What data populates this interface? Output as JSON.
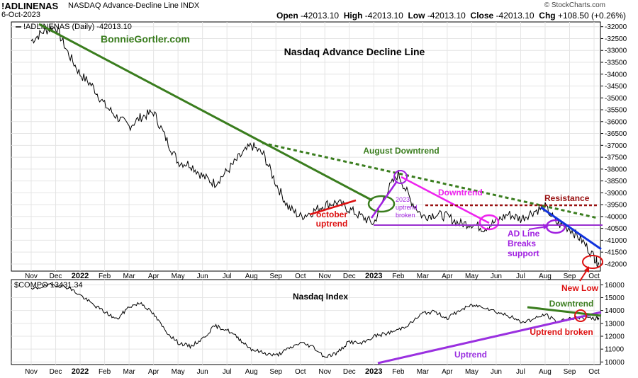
{
  "header": {
    "symbol": "!ADLINENAS",
    "description": "NASDAQ Advance-Decline Line INDX",
    "date": "6-Oct-2023",
    "open_label": "Open",
    "open": "-42013.10",
    "high_label": "High",
    "high": "-42013.10",
    "low_label": "Low",
    "low": "-42013.10",
    "close_label": "Close",
    "close": "-42013.10",
    "chg_label": "Chg",
    "chg": "+108.50 (+0.26%)",
    "watermark": "© StockCharts.com"
  },
  "chart_data": [
    {
      "type": "line",
      "panel": "top",
      "legend": "!ADLINENAS (Daily) -42013.10",
      "title": "Nasdaq Advance Decline Line",
      "brand": "BonnieGortler.com",
      "ylim": [
        -42300,
        -31800
      ],
      "yticks": [
        -32000,
        -32500,
        -33000,
        -33500,
        -34000,
        -34500,
        -35000,
        -35500,
        -36000,
        -36500,
        -37000,
        -37500,
        -38000,
        -38500,
        -39000,
        -39500,
        -40000,
        -40500,
        -41000,
        -41500,
        -42000
      ],
      "ytick_labels": [
        "-32000",
        "-32500",
        "-33000",
        "-33500",
        "-34000",
        "-34500",
        "-35000",
        "-35500",
        "-36000",
        "-36500",
        "-37000",
        "-37500",
        "-38000",
        "-38500",
        "-39000",
        "-39500",
        "-40000",
        "-40500",
        "-41000",
        "-41500",
        "-42000"
      ],
      "x_months": [
        "Nov",
        "Dec",
        "2022",
        "Feb",
        "Mar",
        "Apr",
        "May",
        "Jun",
        "Jul",
        "Aug",
        "Sep",
        "Oct",
        "Nov",
        "Dec",
        "2023",
        "Feb",
        "Mar",
        "Apr",
        "May",
        "Jun",
        "Jul",
        "Aug",
        "Sep",
        "Oct"
      ],
      "x": [
        0,
        0.5,
        1,
        1.5,
        2,
        2.5,
        3,
        3.5,
        4,
        4.5,
        5,
        5.5,
        6,
        6.5,
        7,
        7.5,
        8,
        8.5,
        9,
        9.5,
        10,
        10.5,
        11,
        11.5,
        12,
        12.5,
        13,
        13.5,
        14,
        14.5,
        15,
        15.5,
        16,
        16.5,
        17,
        17.5,
        18,
        18.5,
        19,
        19.5,
        20,
        20.5,
        21,
        21.5,
        22,
        22.5,
        23,
        23.2
      ],
      "values": [
        -32600,
        -32200,
        -32000,
        -33100,
        -34000,
        -34500,
        -35300,
        -35800,
        -36200,
        -35800,
        -35600,
        -36700,
        -37700,
        -37800,
        -38300,
        -38600,
        -38100,
        -37500,
        -37000,
        -37400,
        -38600,
        -39600,
        -40000,
        -39800,
        -39500,
        -39400,
        -39700,
        -40000,
        -40300,
        -39000,
        -38200,
        -39300,
        -40000,
        -39900,
        -40000,
        -40300,
        -40300,
        -40500,
        -40200,
        -39900,
        -40100,
        -39800,
        -39600,
        -40300,
        -40500,
        -41000,
        -41700,
        -42013
      ],
      "annotations": {
        "august_downtrend": "August Downtrend",
        "downtrend": "Downtrend",
        "resistance": "Resistance",
        "october_uptrend": [
          "october",
          "uptrend"
        ],
        "uptrend_2023": [
          "2023",
          "uptrend",
          "broken"
        ],
        "ad_line_breaks": [
          "AD Line",
          "Breaks",
          "support"
        ],
        "new_low": "New Low"
      }
    },
    {
      "type": "line",
      "panel": "bottom",
      "legend": "$COMPO 13431.34",
      "title": "Nasdaq Index",
      "ylim": [
        9800,
        16400
      ],
      "yticks": [
        10000,
        11000,
        12000,
        13000,
        14000,
        15000,
        16000
      ],
      "ytick_labels": [
        "10000",
        "11000",
        "12000",
        "13000",
        "14000",
        "15000",
        "16000"
      ],
      "x_months": [
        "Nov",
        "Dec",
        "2022",
        "Feb",
        "Mar",
        "Apr",
        "May",
        "Jun",
        "Jul",
        "Aug",
        "Sep",
        "Oct",
        "Nov",
        "Dec",
        "2023",
        "Feb",
        "Mar",
        "Apr",
        "May",
        "Jun",
        "Jul",
        "Aug",
        "Sep",
        "Oct"
      ],
      "x": [
        0,
        0.5,
        1,
        1.5,
        2,
        2.5,
        3,
        3.5,
        4,
        4.5,
        5,
        5.5,
        6,
        6.5,
        7,
        7.5,
        8,
        8.5,
        9,
        9.5,
        10,
        10.5,
        11,
        11.5,
        12,
        12.5,
        13,
        13.5,
        14,
        14.5,
        15,
        15.5,
        16,
        16.5,
        17,
        17.5,
        18,
        18.5,
        19,
        19.5,
        20,
        20.5,
        21,
        21.5,
        22,
        22.5,
        23,
        23.2
      ],
      "values": [
        15600,
        15900,
        16000,
        15800,
        15200,
        14500,
        13900,
        13300,
        14300,
        14600,
        13700,
        12400,
        11500,
        11200,
        11800,
        12800,
        12500,
        11800,
        11000,
        10700,
        10500,
        11000,
        11500,
        11200,
        10400,
        10700,
        11600,
        11400,
        12000,
        12200,
        12500,
        13000,
        13800,
        13900,
        13400,
        14000,
        14400,
        14300,
        13900,
        13600,
        13100,
        13300,
        13700,
        13100,
        13400,
        13431,
        13350,
        13431
      ],
      "annotations": {
        "downtrend": "Downtrend",
        "uptrend": "Uptrend",
        "uptrend_broken": "Uptrend broken"
      }
    }
  ]
}
